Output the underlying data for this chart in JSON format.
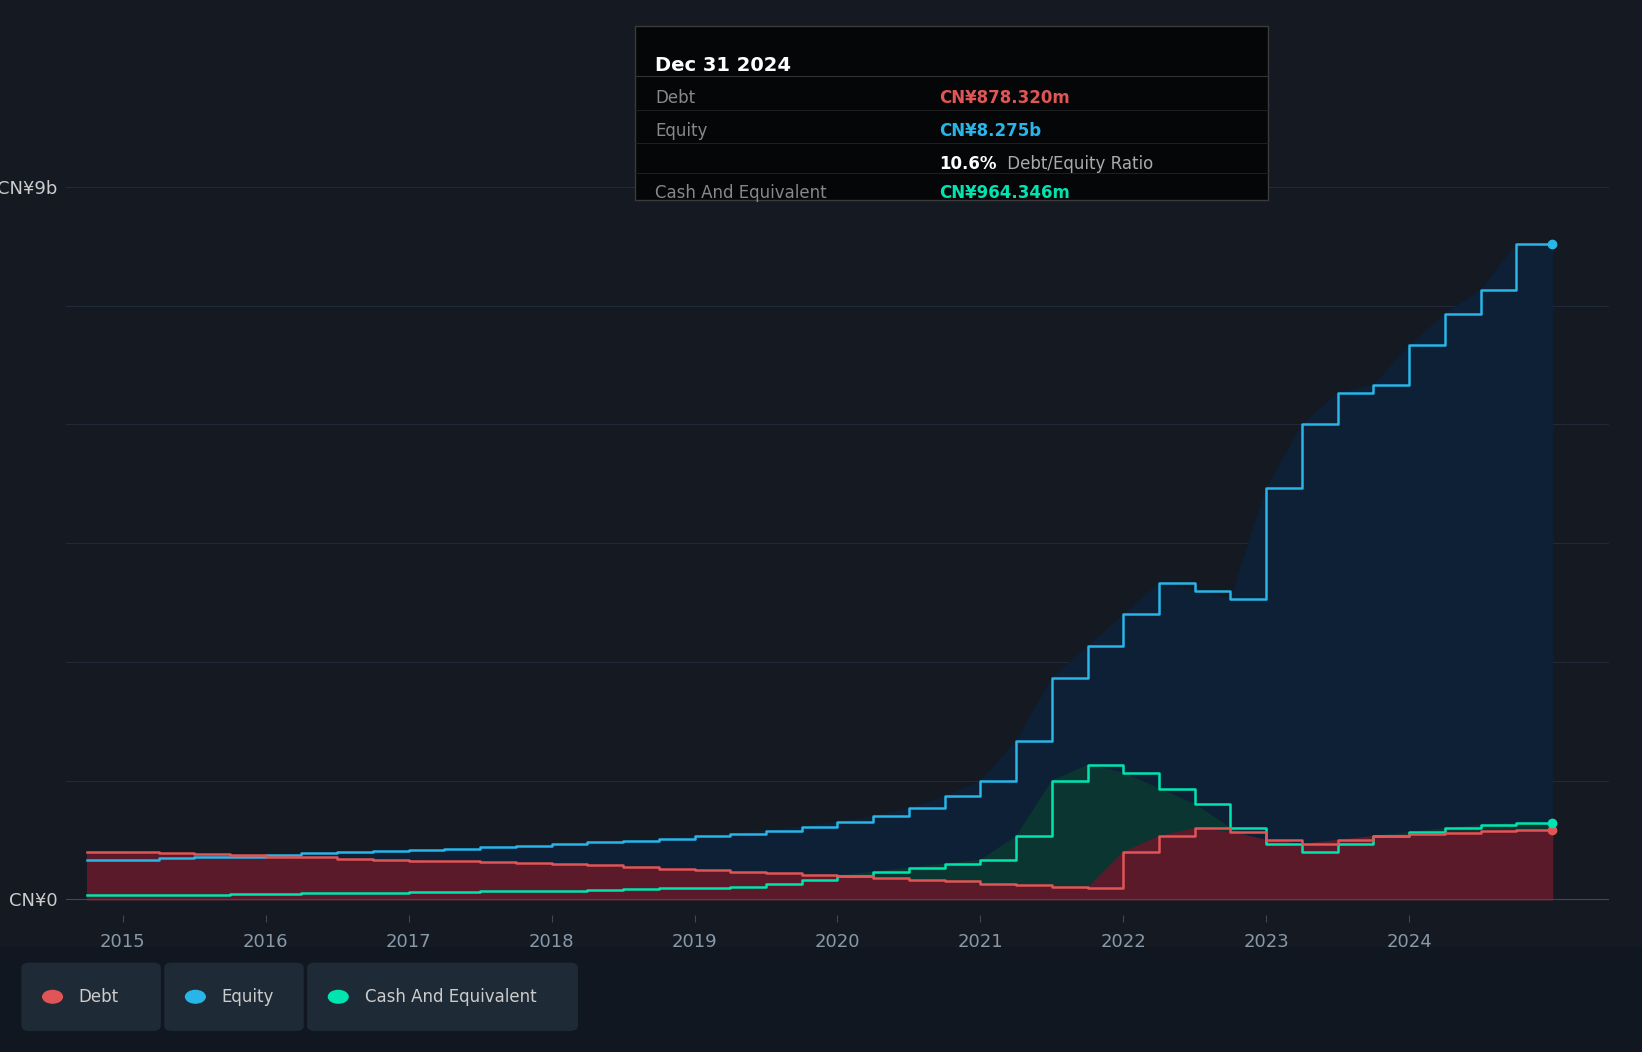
{
  "background_color": "#141922",
  "plot_bg_color": "#141922",
  "grid_color": "#253040",
  "ylabel_top": "CN¥9b",
  "ylabel_zero": "CN¥0",
  "xlim_start": 2014.6,
  "xlim_end": 2025.4,
  "ylim_min": -200000000,
  "ylim_max": 9500000000,
  "debt_color": "#e05555",
  "equity_color": "#29b5e8",
  "cash_color": "#00e5b0",
  "debt_fill_color": "#5a1a2a",
  "equity_fill_color": "#0d2035",
  "cash_fill_color": "#0a3530",
  "dates": [
    2014.75,
    2015.0,
    2015.25,
    2015.5,
    2015.75,
    2016.0,
    2016.25,
    2016.5,
    2016.75,
    2017.0,
    2017.25,
    2017.5,
    2017.75,
    2018.0,
    2018.25,
    2018.5,
    2018.75,
    2019.0,
    2019.25,
    2019.5,
    2019.75,
    2020.0,
    2020.25,
    2020.5,
    2020.75,
    2021.0,
    2021.25,
    2021.5,
    2021.75,
    2022.0,
    2022.25,
    2022.5,
    2022.75,
    2023.0,
    2023.25,
    2023.5,
    2023.75,
    2024.0,
    2024.25,
    2024.5,
    2024.75,
    2025.0
  ],
  "equity": [
    500000000,
    500000000,
    520000000,
    530000000,
    540000000,
    560000000,
    580000000,
    600000000,
    610000000,
    620000000,
    640000000,
    660000000,
    680000000,
    700000000,
    720000000,
    740000000,
    760000000,
    800000000,
    830000000,
    870000000,
    920000000,
    980000000,
    1050000000,
    1150000000,
    1300000000,
    1500000000,
    2000000000,
    2800000000,
    3200000000,
    3600000000,
    4000000000,
    3900000000,
    3800000000,
    5200000000,
    6000000000,
    6400000000,
    6500000000,
    7000000000,
    7400000000,
    7700000000,
    8275000000,
    8275000000
  ],
  "debt": [
    600000000,
    600000000,
    580000000,
    570000000,
    560000000,
    540000000,
    530000000,
    510000000,
    500000000,
    490000000,
    480000000,
    470000000,
    460000000,
    450000000,
    430000000,
    410000000,
    390000000,
    370000000,
    350000000,
    330000000,
    310000000,
    290000000,
    270000000,
    250000000,
    230000000,
    200000000,
    180000000,
    160000000,
    150000000,
    600000000,
    800000000,
    900000000,
    850000000,
    750000000,
    700000000,
    750000000,
    800000000,
    820000000,
    840000000,
    860000000,
    878000000,
    878000000
  ],
  "cash": [
    50000000,
    50000000,
    55000000,
    60000000,
    65000000,
    70000000,
    75000000,
    80000000,
    85000000,
    90000000,
    95000000,
    100000000,
    105000000,
    110000000,
    120000000,
    130000000,
    140000000,
    150000000,
    160000000,
    200000000,
    250000000,
    300000000,
    350000000,
    400000000,
    450000000,
    500000000,
    800000000,
    1500000000,
    1700000000,
    1600000000,
    1400000000,
    1200000000,
    900000000,
    700000000,
    600000000,
    700000000,
    800000000,
    850000000,
    900000000,
    940000000,
    964000000,
    964000000
  ],
  "legend_items": [
    {
      "label": "Debt",
      "color": "#e05555"
    },
    {
      "label": "Equity",
      "color": "#29b5e8"
    },
    {
      "label": "Cash And Equivalent",
      "color": "#00e5b0"
    }
  ],
  "tooltip": {
    "title": "Dec 31 2024",
    "rows": [
      {
        "label": "Debt",
        "value": "CN¥878.320m",
        "value_color": "#e05555"
      },
      {
        "label": "Equity",
        "value": "CN¥8.275b",
        "value_color": "#29b5e8"
      },
      {
        "label": "",
        "value": "10.6% Debt/Equity Ratio",
        "value_color": "#ffffff"
      },
      {
        "label": "Cash And Equivalent",
        "value": "CN¥964.346m",
        "value_color": "#00e5b0"
      }
    ]
  }
}
